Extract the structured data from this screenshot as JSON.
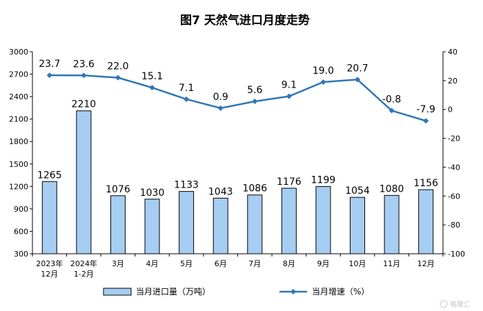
{
  "chart_data": {
    "type": "bar+line",
    "title": "图7  天然气进口月度走势",
    "categories": [
      [
        "2023年",
        "12月"
      ],
      [
        "2024年",
        "1-2月"
      ],
      [
        "3月"
      ],
      [
        "4月"
      ],
      [
        "5月"
      ],
      [
        "6月"
      ],
      [
        "7月"
      ],
      [
        "8月"
      ],
      [
        "9月"
      ],
      [
        "10月"
      ],
      [
        "11月"
      ],
      [
        "12月"
      ]
    ],
    "series": [
      {
        "name": "当月进口量（万吨）",
        "type": "bar",
        "axis": "left",
        "color": "#a6cdf2",
        "edge_color": "#000000",
        "values": [
          1265,
          2210,
          1076,
          1030,
          1133,
          1043,
          1086,
          1176,
          1199,
          1054,
          1080,
          1156
        ],
        "labels": [
          "1265",
          "2210",
          "1076",
          "1030",
          "1133",
          "1043",
          "1086",
          "1176",
          "1199",
          "1054",
          "1080",
          "1156"
        ]
      },
      {
        "name": "当月增速（%）",
        "type": "line",
        "axis": "right",
        "color": "#2e75b6",
        "marker": "diamond",
        "values": [
          23.7,
          23.6,
          22.0,
          15.1,
          7.1,
          0.9,
          5.6,
          9.1,
          19.0,
          20.7,
          -0.8,
          -7.9
        ],
        "labels": [
          "23.7",
          "23.6",
          "22.0",
          "15.1",
          "7.1",
          "0.9",
          "5.6",
          "9.1",
          "19.0",
          "20.7",
          "-0.8",
          "-7.9"
        ]
      }
    ],
    "y_left": {
      "range": [
        300,
        3000
      ],
      "ticks": [
        "300",
        "600",
        "900",
        "1200",
        "1500",
        "1800",
        "2100",
        "2400",
        "2700",
        "3000"
      ]
    },
    "y_right": {
      "range": [
        -100,
        40
      ],
      "ticks": [
        "40",
        "20",
        "0",
        "-20",
        "-40",
        "-60",
        "-80",
        "-100"
      ]
    },
    "legend": {
      "position": "bottom"
    },
    "grid": false
  },
  "watermark": {
    "text": "格隆汇"
  }
}
